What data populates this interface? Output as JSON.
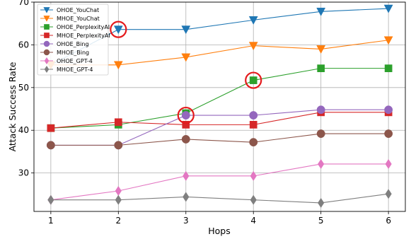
{
  "chart_data": {
    "type": "line",
    "xlabel": "Hops",
    "ylabel": "Attack Success Rate",
    "x": [
      1,
      2,
      3,
      4,
      5,
      6
    ],
    "xlim": [
      0.75,
      6.25
    ],
    "ylim": [
      21,
      70
    ],
    "xticks": [
      1,
      2,
      3,
      4,
      5,
      6
    ],
    "yticks": [
      30,
      40,
      50,
      60,
      70
    ],
    "grid": true,
    "legend_position": "upper-left",
    "series": [
      {
        "name": "OHOE_YouChat",
        "color": "#1f77b4",
        "marker": "triangle-down",
        "values": [
          55.3,
          63.6,
          63.6,
          65.8,
          67.8,
          68.5
        ]
      },
      {
        "name": "MHOE_YouChat",
        "color": "#ff7f0e",
        "marker": "triangle-down",
        "values": [
          55.3,
          55.3,
          57.1,
          59.8,
          59.0,
          61.1
        ]
      },
      {
        "name": "OHOE_PerplexityAI",
        "color": "#2ca02c",
        "marker": "square",
        "values": [
          40.5,
          41.3,
          44.0,
          51.7,
          54.5,
          54.5
        ]
      },
      {
        "name": "MHOE_PerplexityAI",
        "color": "#d62728",
        "marker": "square",
        "values": [
          40.5,
          41.9,
          41.3,
          41.3,
          44.2,
          44.2
        ]
      },
      {
        "name": "OHOE_Bing",
        "color": "#9467bd",
        "marker": "circle",
        "values": [
          36.5,
          36.5,
          43.5,
          43.5,
          44.8,
          44.8
        ]
      },
      {
        "name": "MHOE_Bing",
        "color": "#8c564b",
        "marker": "circle",
        "values": [
          36.5,
          36.5,
          37.9,
          37.2,
          39.2,
          39.2
        ]
      },
      {
        "name": "OHOE_GPT-4",
        "color": "#e377c2",
        "marker": "diamond",
        "values": [
          23.7,
          25.8,
          29.3,
          29.3,
          32.1,
          32.1
        ]
      },
      {
        "name": "MHOE_GPT-4",
        "color": "#7f7f7f",
        "marker": "diamond",
        "values": [
          23.7,
          23.7,
          24.4,
          23.7,
          23.0,
          25.1
        ]
      }
    ],
    "annotations": [
      {
        "type": "circle",
        "color": "#e41a1c",
        "x": 2,
        "y": 63.6
      },
      {
        "type": "circle",
        "color": "#e41a1c",
        "x": 3,
        "y": 43.5
      },
      {
        "type": "circle",
        "color": "#e41a1c",
        "x": 4,
        "y": 51.7
      }
    ]
  }
}
